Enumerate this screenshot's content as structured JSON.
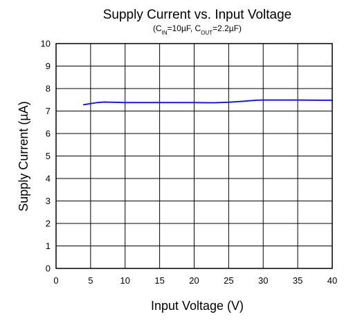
{
  "chart_data": {
    "type": "line",
    "title": "Supply Current vs. Input Voltage",
    "subtitle": {
      "prefix": "(C",
      "cin_sub": "IN",
      "cin_value": "=10µF, C",
      "cout_sub": "OUT",
      "cout_value": "=2.2µF)"
    },
    "xlabel": "Input Voltage (V)",
    "ylabel": "Supply Current (µA)",
    "xlim": [
      0,
      40
    ],
    "ylim": [
      0,
      10
    ],
    "xticks": [
      0,
      5,
      10,
      15,
      20,
      25,
      30,
      35,
      40
    ],
    "yticks": [
      0,
      1,
      2,
      3,
      4,
      5,
      6,
      7,
      8,
      9,
      10
    ],
    "grid": true,
    "series": [
      {
        "color": "#1a1ad6",
        "x": [
          4,
          5,
          6,
          7,
          8,
          10,
          12,
          15,
          18,
          20,
          22,
          23,
          25,
          27,
          28,
          29,
          30,
          32,
          35,
          38,
          40
        ],
        "y": [
          7.28,
          7.33,
          7.38,
          7.4,
          7.39,
          7.38,
          7.38,
          7.38,
          7.38,
          7.38,
          7.37,
          7.37,
          7.39,
          7.43,
          7.46,
          7.48,
          7.49,
          7.49,
          7.49,
          7.48,
          7.48
        ]
      }
    ]
  }
}
